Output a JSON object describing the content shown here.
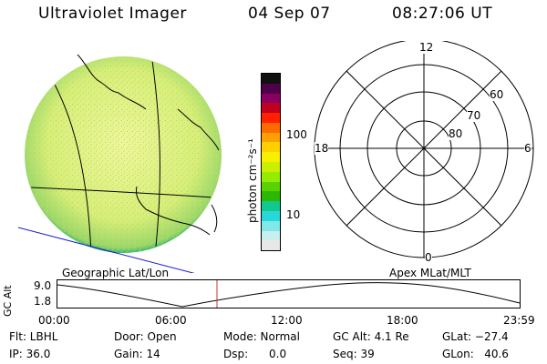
{
  "header": {
    "title": "Ultraviolet Imager",
    "date": "04 Sep 07",
    "time": "08:27:06 UT"
  },
  "colorbar": {
    "unit_label": "photon cm⁻²s⁻¹",
    "tick_100": "100",
    "tick_10": "10",
    "colors": [
      "#101010",
      "#50004a",
      "#8a0060",
      "#c0001e",
      "#ff2000",
      "#ff6a00",
      "#ffa000",
      "#ffd000",
      "#f8f000",
      "#c8f000",
      "#96ec00",
      "#5ad200",
      "#2ab800",
      "#10c890",
      "#28d8d8",
      "#80e8e8",
      "#c8eeee",
      "#e8e8e8"
    ]
  },
  "polar": {
    "mlt_12": "12",
    "mlt_18": "18",
    "mlt_6": "6",
    "mlt_0": "0",
    "lat_60": "60",
    "lat_70": "70",
    "lat_80": "80"
  },
  "labels": {
    "geo": "Geographic Lat/Lon",
    "apex": "Apex MLat/MLT"
  },
  "alt_plot": {
    "ylabel": "GC Alt",
    "ytick_high": "9.0",
    "ytick_low": "1.8",
    "xticks": [
      "00:00",
      "06:00",
      "12:00",
      "18:00",
      "23:59"
    ]
  },
  "info": {
    "flt": "Flt: LBHL",
    "door": "Door: Open",
    "mode": "Mode: Normal",
    "gc_alt": "GC Alt: 4.1 Re",
    "glat": "GLat: −27.4",
    "ip": "IP: 36.0",
    "gain": "Gain: 14",
    "dsp": "Dsp:      0.0",
    "seq": "Seq: 39",
    "glon": "GLon:   40.6"
  },
  "colors": {
    "disk_base": "#d8ee78",
    "disk_rim": "#3ab86a",
    "marker": "#c83030",
    "equator_line": "#1a1ad0"
  }
}
